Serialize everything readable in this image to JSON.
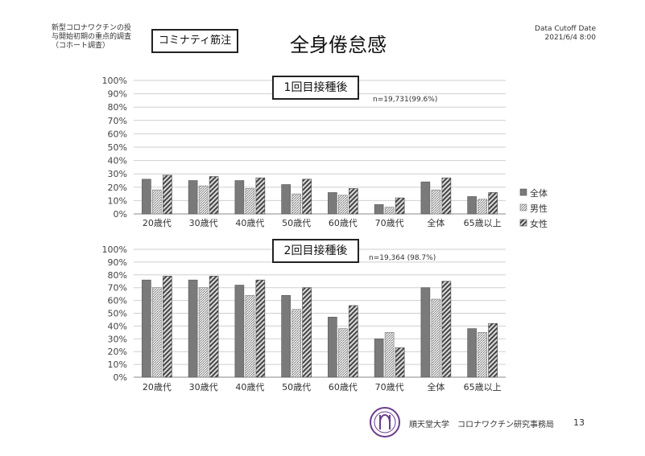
{
  "header": {
    "subtitle_lines": [
      "新型コロナワクチンの投",
      "与開始初期の重点的調査",
      "（コホート調査）"
    ],
    "label_box": "コミナティ筋注",
    "title": "全身倦怠感",
    "cutoff_label": "Data Cutoff Date",
    "cutoff_date": "2021/6/4 8:00"
  },
  "footer": {
    "org": "順天堂大学　コロナワクチン研究事務局",
    "page": "13"
  },
  "colors": {
    "all": "#7a7a7a",
    "male": "#c9c9c9",
    "female": "#8e8e8e",
    "grid": "#cfcfcf",
    "axis": "#888888"
  },
  "legend": [
    "全体",
    "男性",
    "女性"
  ],
  "chart_data": [
    {
      "type": "bar",
      "title": "1回目接種後",
      "note": "n=19,731(99.6%)",
      "categories": [
        "20歳代",
        "30歳代",
        "40歳代",
        "50歳代",
        "60歳代",
        "70歳代",
        "全体",
        "65歳以上"
      ],
      "ylim": [
        0,
        100
      ],
      "yticks": [
        "0%",
        "10%",
        "20%",
        "30%",
        "40%",
        "50%",
        "60%",
        "70%",
        "80%",
        "90%",
        "100%"
      ],
      "legend_position": "right",
      "grid": true,
      "series": [
        {
          "name": "全体",
          "values": [
            26,
            25,
            25,
            22,
            16,
            7,
            24,
            13
          ]
        },
        {
          "name": "男性",
          "values": [
            18,
            21,
            19,
            15,
            14,
            5,
            18,
            11
          ]
        },
        {
          "name": "女性",
          "values": [
            29,
            28,
            27,
            26,
            19,
            12,
            27,
            16
          ]
        }
      ]
    },
    {
      "type": "bar",
      "title": "2回目接種後",
      "note": "n=19,364 (98.7%)",
      "categories": [
        "20歳代",
        "30歳代",
        "40歳代",
        "50歳代",
        "60歳代",
        "70歳代",
        "全体",
        "65歳以上"
      ],
      "ylim": [
        0,
        100
      ],
      "yticks": [
        "0%",
        "10%",
        "20%",
        "30%",
        "40%",
        "50%",
        "60%",
        "70%",
        "80%",
        "90%",
        "100%"
      ],
      "grid": true,
      "series": [
        {
          "name": "全体",
          "values": [
            76,
            76,
            72,
            64,
            47,
            30,
            70,
            38
          ]
        },
        {
          "name": "男性",
          "values": [
            70,
            70,
            64,
            53,
            38,
            35,
            61,
            35
          ]
        },
        {
          "name": "女性",
          "values": [
            79,
            79,
            76,
            70,
            56,
            23,
            75,
            42
          ]
        }
      ]
    }
  ]
}
